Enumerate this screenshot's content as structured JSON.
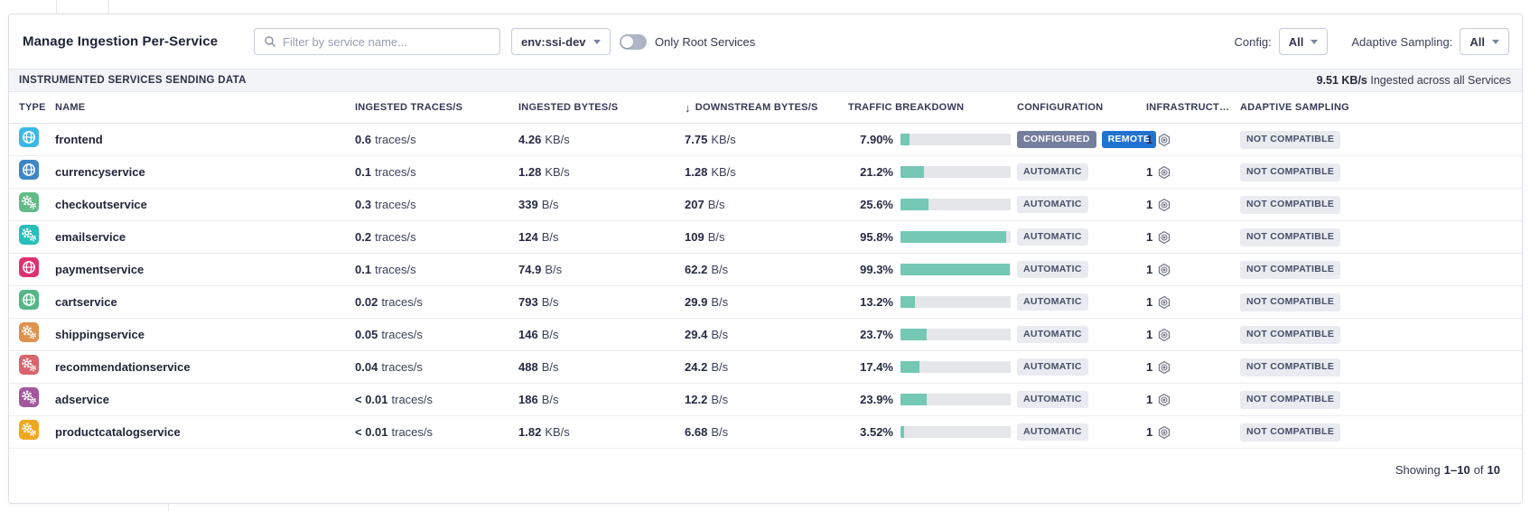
{
  "page": {
    "title": "Manage Ingestion Per-Service"
  },
  "filters": {
    "search_placeholder": "Filter by service name...",
    "env_value": "env:ssi-dev",
    "toggle_label": "Only Root Services",
    "toggle_state": "off",
    "config_label": "Config:",
    "config_value": "All",
    "adaptive_label": "Adaptive Sampling:",
    "adaptive_value": "All"
  },
  "section": {
    "title": "INSTRUMENTED SERVICES SENDING DATA",
    "total_rate": "9.51 KB/s",
    "total_suffix": "Ingested across all Services"
  },
  "table": {
    "columns": [
      "TYPE",
      "NAME",
      "INGESTED TRACES/S",
      "INGESTED BYTES/S",
      "DOWNSTREAM BYTES/S",
      "TRAFFIC BREAKDOWN",
      "CONFIGURATION",
      "INFRASTRUCT…",
      "ADAPTIVE SAMPLING"
    ],
    "sort": {
      "column": "DOWNSTREAM BYTES/S",
      "direction": "desc",
      "icon": "↓"
    },
    "rows": [
      {
        "name": "frontend",
        "icon": "globe",
        "color": "#3ab8e6",
        "traces": "0.6",
        "traces_unit": "traces/s",
        "ingested": "4.26",
        "ingested_unit": "KB/s",
        "downstream": "7.75",
        "downstream_unit": "KB/s",
        "traffic_pct": "7.90%",
        "traffic_value": 7.9,
        "config": [
          {
            "label": "CONFIGURED",
            "style": "slate"
          },
          {
            "label": "REMOTE",
            "style": "blue"
          }
        ],
        "hosts": "1",
        "adaptive": "NOT COMPATIBLE"
      },
      {
        "name": "currencyservice",
        "icon": "globe",
        "color": "#3d86c6",
        "traces": "0.1",
        "traces_unit": "traces/s",
        "ingested": "1.28",
        "ingested_unit": "KB/s",
        "downstream": "1.28",
        "downstream_unit": "KB/s",
        "traffic_pct": "21.2%",
        "traffic_value": 21.2,
        "config": [
          {
            "label": "AUTOMATIC",
            "style": "light"
          }
        ],
        "hosts": "1",
        "adaptive": "NOT COMPATIBLE"
      },
      {
        "name": "checkoutservice",
        "icon": "gears",
        "color": "#62bb85",
        "traces": "0.3",
        "traces_unit": "traces/s",
        "ingested": "339",
        "ingested_unit": "B/s",
        "downstream": "207",
        "downstream_unit": "B/s",
        "traffic_pct": "25.6%",
        "traffic_value": 25.6,
        "config": [
          {
            "label": "AUTOMATIC",
            "style": "light"
          }
        ],
        "hosts": "1",
        "adaptive": "NOT COMPATIBLE"
      },
      {
        "name": "emailservice",
        "icon": "gears",
        "color": "#27bfba",
        "traces": "0.2",
        "traces_unit": "traces/s",
        "ingested": "124",
        "ingested_unit": "B/s",
        "downstream": "109",
        "downstream_unit": "B/s",
        "traffic_pct": "95.8%",
        "traffic_value": 95.8,
        "config": [
          {
            "label": "AUTOMATIC",
            "style": "light"
          }
        ],
        "hosts": "1",
        "adaptive": "NOT COMPATIBLE"
      },
      {
        "name": "paymentservice",
        "icon": "globe",
        "color": "#dc3270",
        "traces": "0.1",
        "traces_unit": "traces/s",
        "ingested": "74.9",
        "ingested_unit": "B/s",
        "downstream": "62.2",
        "downstream_unit": "B/s",
        "traffic_pct": "99.3%",
        "traffic_value": 99.3,
        "config": [
          {
            "label": "AUTOMATIC",
            "style": "light"
          }
        ],
        "hosts": "1",
        "adaptive": "NOT COMPATIBLE"
      },
      {
        "name": "cartservice",
        "icon": "globe",
        "color": "#55b787",
        "traces": "0.02",
        "traces_unit": "traces/s",
        "ingested": "793",
        "ingested_unit": "B/s",
        "downstream": "29.9",
        "downstream_unit": "B/s",
        "traffic_pct": "13.2%",
        "traffic_value": 13.2,
        "config": [
          {
            "label": "AUTOMATIC",
            "style": "light"
          }
        ],
        "hosts": "1",
        "adaptive": "NOT COMPATIBLE"
      },
      {
        "name": "shippingservice",
        "icon": "gears",
        "color": "#e0914e",
        "traces": "0.05",
        "traces_unit": "traces/s",
        "ingested": "146",
        "ingested_unit": "B/s",
        "downstream": "29.4",
        "downstream_unit": "B/s",
        "traffic_pct": "23.7%",
        "traffic_value": 23.7,
        "config": [
          {
            "label": "AUTOMATIC",
            "style": "light"
          }
        ],
        "hosts": "1",
        "adaptive": "NOT COMPATIBLE"
      },
      {
        "name": "recommendationservice",
        "icon": "gears",
        "color": "#d9646c",
        "traces": "0.04",
        "traces_unit": "traces/s",
        "ingested": "488",
        "ingested_unit": "B/s",
        "downstream": "24.2",
        "downstream_unit": "B/s",
        "traffic_pct": "17.4%",
        "traffic_value": 17.4,
        "config": [
          {
            "label": "AUTOMATIC",
            "style": "light"
          }
        ],
        "hosts": "1",
        "adaptive": "NOT COMPATIBLE"
      },
      {
        "name": "adservice",
        "icon": "gears",
        "color": "#a2579d",
        "traces": "< 0.01",
        "traces_unit": "traces/s",
        "ingested": "186",
        "ingested_unit": "B/s",
        "downstream": "12.2",
        "downstream_unit": "B/s",
        "traffic_pct": "23.9%",
        "traffic_value": 23.9,
        "config": [
          {
            "label": "AUTOMATIC",
            "style": "light"
          }
        ],
        "hosts": "1",
        "adaptive": "NOT COMPATIBLE"
      },
      {
        "name": "productcatalogservice",
        "icon": "gears",
        "color": "#f0a71f",
        "traces": "< 0.01",
        "traces_unit": "traces/s",
        "ingested": "1.82",
        "ingested_unit": "KB/s",
        "downstream": "6.68",
        "downstream_unit": "B/s",
        "traffic_pct": "3.52%",
        "traffic_value": 3.52,
        "config": [
          {
            "label": "AUTOMATIC",
            "style": "light"
          }
        ],
        "hosts": "1",
        "adaptive": "NOT COMPATIBLE"
      }
    ]
  },
  "footer": {
    "showing": "Showing",
    "range": "1–10",
    "of": "of",
    "total": "10"
  },
  "colors": {
    "bar_fill": "#74c8b4",
    "bar_track": "#e4e6e9",
    "badge_slate": "#767e9e",
    "badge_blue": "#2173d1",
    "badge_light_bg": "#e9ebf1"
  }
}
